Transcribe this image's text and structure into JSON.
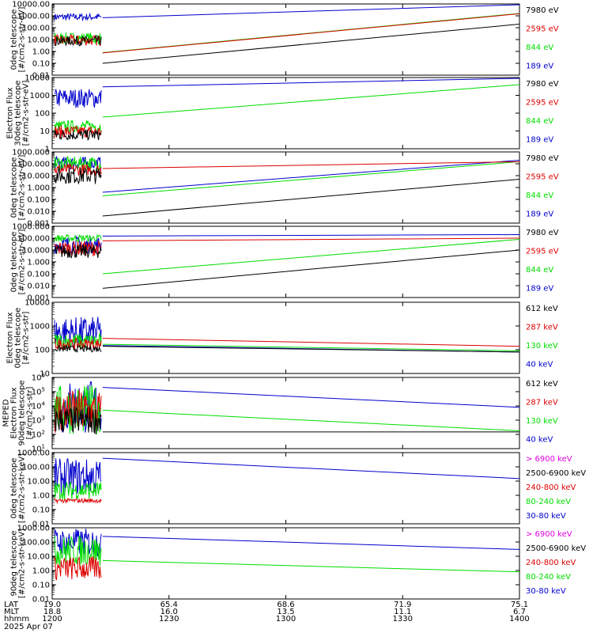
{
  "colors": {
    "black": "#000000",
    "red": "#dd0000",
    "green": "#00dd00",
    "blue": "#0000cc",
    "magenta": "#dd00dd"
  },
  "chart_data": [
    {
      "type": "line",
      "ylabel": [
        "0deg telescope",
        "[#/cm2-s-str-eV]"
      ],
      "scale": "log",
      "ylim": [
        0.01,
        10000
      ],
      "yticks": [
        "0.01",
        "0.10",
        "1.00",
        "10.00",
        "100.00",
        "1000.00",
        "10000.00"
      ],
      "legend": [
        {
          "label": "7980 eV",
          "color": "black"
        },
        {
          "label": "2595 eV",
          "color": "red"
        },
        {
          "label": "844 eV",
          "color": "green"
        },
        {
          "label": "189 eV",
          "color": "blue"
        }
      ],
      "series": [
        {
          "color": "blue",
          "noisy": [
            400,
            1600
          ],
          "trend": [
            [
              0.27,
              700
            ],
            [
              1.0,
              10000
            ]
          ]
        },
        {
          "color": "green",
          "noisy": [
            4,
            40
          ],
          "trend": [
            [
              0.27,
              0.8
            ],
            [
              1.0,
              1600
            ]
          ]
        },
        {
          "color": "red",
          "noisy": [
            3,
            25
          ],
          "trend": [
            [
              0.27,
              0.75
            ],
            [
              1.0,
              1500
            ]
          ]
        },
        {
          "color": "black",
          "noisy": [
            3,
            20
          ],
          "trend": [
            [
              0.27,
              0.1
            ],
            [
              1.0,
              200
            ]
          ]
        }
      ]
    },
    {
      "type": "line",
      "ylabel": [
        "Electron Flux",
        "30deg telescope",
        "[#/cm2-s-str-eV]"
      ],
      "scale": "log",
      "ylim": [
        1,
        10000
      ],
      "yticks": [
        "1",
        "10",
        "100",
        "1000",
        "10000"
      ],
      "legend": [
        {
          "label": "7980 eV",
          "color": "black"
        },
        {
          "label": "2595 eV",
          "color": "red"
        },
        {
          "label": "844 eV",
          "color": "green"
        },
        {
          "label": "189 eV",
          "color": "blue"
        }
      ],
      "series": [
        {
          "color": "blue",
          "noisy": [
            200,
            2500
          ],
          "trend": [
            [
              0.27,
              3000
            ],
            [
              1.0,
              10000
            ]
          ]
        },
        {
          "color": "green",
          "noisy": [
            8,
            40
          ],
          "trend": [
            [
              0.27,
              60
            ],
            [
              1.0,
              4000
            ]
          ]
        },
        {
          "color": "red",
          "noisy": [
            4,
            20
          ],
          "trend": null
        },
        {
          "color": "black",
          "noisy": [
            3,
            12
          ],
          "trend": null
        }
      ]
    },
    {
      "type": "line",
      "ylabel": [
        "0deg telescope",
        "[#/cm2-s-str-eV]"
      ],
      "scale": "log",
      "ylim": [
        0.001,
        1000
      ],
      "yticks": [
        "0.001",
        "0.010",
        "0.100",
        "1.000",
        "10.000",
        "100.000",
        "1000.000"
      ],
      "legend": [
        {
          "label": "7980 eV",
          "color": "black"
        },
        {
          "label": "2595 eV",
          "color": "red"
        },
        {
          "label": "844 eV",
          "color": "green"
        },
        {
          "label": "189 eV",
          "color": "blue"
        }
      ],
      "series": [
        {
          "color": "blue",
          "noisy": [
            30,
            400
          ],
          "trend": [
            [
              0.27,
              0.4
            ],
            [
              1.0,
              200
            ]
          ]
        },
        {
          "color": "green",
          "noisy": [
            30,
            400
          ],
          "trend": [
            [
              0.27,
              0.2
            ],
            [
              1.0,
              150
            ]
          ]
        },
        {
          "color": "red",
          "noisy": [
            10,
            100
          ],
          "trend": [
            [
              0.27,
              40
            ],
            [
              1.0,
              150
            ]
          ]
        },
        {
          "color": "black",
          "noisy": [
            2,
            50
          ],
          "trend": [
            [
              0.27,
              0.004
            ],
            [
              1.0,
              5
            ]
          ]
        }
      ]
    },
    {
      "type": "line",
      "ylabel": [
        "0deg telescope",
        "[#/cm2-s-str-eV]"
      ],
      "scale": "log",
      "ylim": [
        0.001,
        1000
      ],
      "yticks": [
        "0.001",
        "0.010",
        "0.100",
        "1.000",
        "10.000",
        "100.000",
        "1000.000"
      ],
      "legend": [
        {
          "label": "7980 eV",
          "color": "black"
        },
        {
          "label": "2595 eV",
          "color": "red"
        },
        {
          "label": "844 eV",
          "color": "green"
        },
        {
          "label": "189 eV",
          "color": "blue"
        }
      ],
      "series": [
        {
          "color": "blue",
          "noisy": [
            5,
            150
          ],
          "trend": [
            [
              0.27,
              150
            ],
            [
              1.0,
              200
            ]
          ]
        },
        {
          "color": "green",
          "noisy": [
            50,
            200
          ],
          "trend": [
            [
              0.27,
              0.1
            ],
            [
              1.0,
              80
            ]
          ]
        },
        {
          "color": "red",
          "noisy": [
            3,
            60
          ],
          "trend": [
            [
              0.27,
              60
            ],
            [
              1.0,
              100
            ]
          ]
        },
        {
          "color": "black",
          "noisy": [
            2,
            30
          ],
          "trend": [
            [
              0.27,
              0.006
            ],
            [
              1.0,
              10
            ]
          ]
        }
      ]
    },
    {
      "type": "line",
      "ylabel": [
        "Electron Flux",
        "0deg telescope",
        "[#/cm2-s-str]"
      ],
      "scale": "log",
      "ylim": [
        10,
        10000
      ],
      "yticks": [
        "10",
        "100",
        "1000",
        "10000"
      ],
      "legend": [
        {
          "label": "612 keV",
          "color": "black"
        },
        {
          "label": "287 keV",
          "color": "red"
        },
        {
          "label": "130 keV",
          "color": "green"
        },
        {
          "label": "40 keV",
          "color": "blue"
        }
      ],
      "series": [
        {
          "color": "blue",
          "noisy": [
            120,
            2500
          ],
          "trend": [
            [
              0.27,
              150
            ],
            [
              1.0,
              80
            ]
          ]
        },
        {
          "color": "green",
          "noisy": [
            100,
            500
          ],
          "trend": [
            [
              0.27,
              170
            ],
            [
              1.0,
              90
            ]
          ]
        },
        {
          "color": "red",
          "noisy": [
            100,
            300
          ],
          "trend": [
            [
              0.27,
              300
            ],
            [
              1.0,
              140
            ]
          ]
        },
        {
          "color": "black",
          "noisy": [
            80,
            150
          ],
          "trend": [
            [
              0.27,
              140
            ],
            [
              1.0,
              80
            ]
          ]
        }
      ]
    },
    {
      "type": "line",
      "ylabel": [
        "MEPED",
        "Electron Flux",
        "90deg telescope",
        "[#/cm2-s-str]"
      ],
      "scale": "log",
      "ylim": [
        10,
        1000000
      ],
      "yticks": [
        "10^1",
        "10^2",
        "10^3",
        "10^4",
        "10^5",
        "10^6"
      ],
      "legend": [
        {
          "label": "612 keV",
          "color": "black"
        },
        {
          "label": "287 keV",
          "color": "red"
        },
        {
          "label": "130 keV",
          "color": "green"
        },
        {
          "label": "40 keV",
          "color": "blue"
        }
      ],
      "series": [
        {
          "color": "blue",
          "noisy": [
            100,
            700000
          ],
          "trend": [
            [
              0.27,
              200000
            ],
            [
              1.0,
              8000
            ]
          ]
        },
        {
          "color": "green",
          "noisy": [
            100,
            300000
          ],
          "trend": [
            [
              0.27,
              5000
            ],
            [
              1.0,
              180
            ]
          ]
        },
        {
          "color": "red",
          "noisy": [
            100,
            150000
          ],
          "trend": null
        },
        {
          "color": "black",
          "noisy": [
            100,
            10000
          ],
          "trend": [
            [
              0.27,
              150
            ],
            [
              1.0,
              150
            ]
          ]
        }
      ]
    },
    {
      "type": "line",
      "ylabel": [
        "0deg telescope",
        "[#/cm2-s-str-keV]"
      ],
      "scale": "log",
      "ylim": [
        0.01,
        1000
      ],
      "yticks": [
        "0.01",
        "0.10",
        "1.00",
        "10.00",
        "100.00",
        "1000.00"
      ],
      "legend": [
        {
          "label": "> 6900 keV",
          "color": "magenta"
        },
        {
          "label": "2500-6900 keV",
          "color": "black"
        },
        {
          "label": "240-800 keV",
          "color": "red"
        },
        {
          "label": "80-240 keV",
          "color": "green"
        },
        {
          "label": "30-80 keV",
          "color": "blue"
        }
      ],
      "series": [
        {
          "color": "blue",
          "noisy": [
            1,
            400
          ],
          "trend": [
            [
              0.27,
              400
            ],
            [
              1.0,
              15
            ]
          ]
        },
        {
          "color": "green",
          "noisy": [
            0.5,
            10
          ],
          "trend": null
        },
        {
          "color": "red",
          "noisy": [
            0.3,
            0.6
          ],
          "trend": null
        }
      ]
    },
    {
      "type": "line",
      "ylabel": [
        "90deg telescope",
        "[#/cm2-s-str-keV]"
      ],
      "scale": "log",
      "ylim": [
        0.01,
        1000
      ],
      "yticks": [
        "0.01",
        "0.10",
        "1.00",
        "10.00",
        "100.00",
        "1000.00"
      ],
      "legend": [
        {
          "label": "> 6900 keV",
          "color": "magenta"
        },
        {
          "label": "2500-6900 keV",
          "color": "black"
        },
        {
          "label": "240-800 keV",
          "color": "red"
        },
        {
          "label": "80-240 keV",
          "color": "green"
        },
        {
          "label": "30-80 keV",
          "color": "blue"
        }
      ],
      "series": [
        {
          "color": "blue",
          "noisy": [
            10,
            900
          ],
          "trend": [
            [
              0.27,
              250
            ],
            [
              1.0,
              30
            ]
          ]
        },
        {
          "color": "green",
          "noisy": [
            2,
            300
          ],
          "trend": [
            [
              0.27,
              5
            ],
            [
              1.0,
              0.8
            ]
          ]
        },
        {
          "color": "red",
          "noisy": [
            0.2,
            10
          ],
          "trend": null
        }
      ]
    }
  ],
  "x_axis": {
    "row_labels": [
      "LAT",
      "MLT",
      "hhmm"
    ],
    "ticks": [
      {
        "pos": 0.0,
        "values": [
          "19.0",
          "18.8",
          "1200"
        ]
      },
      {
        "pos": 0.25,
        "values": [
          "65.4",
          "16.0",
          "1230"
        ]
      },
      {
        "pos": 0.5,
        "values": [
          "68.6",
          "13.5",
          "1300"
        ]
      },
      {
        "pos": 0.75,
        "values": [
          "71.9",
          "11.1",
          "1330"
        ]
      },
      {
        "pos": 1.0,
        "values": [
          "75.1",
          "6.7",
          "1400"
        ]
      }
    ],
    "date": "2025 Apr 07"
  }
}
